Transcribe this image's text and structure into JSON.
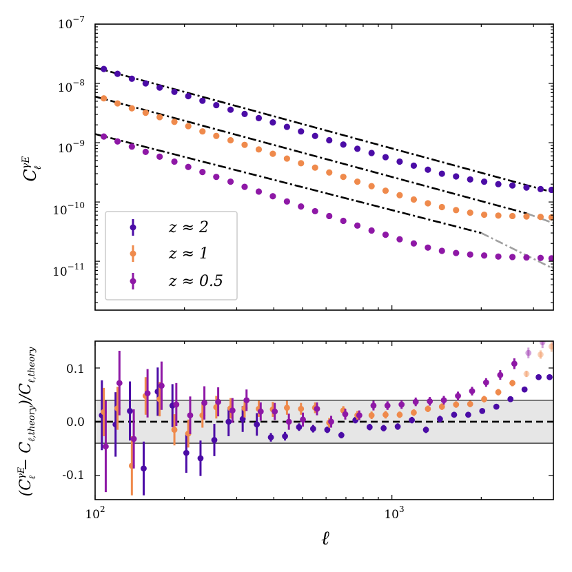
{
  "chart_data": [
    {
      "type": "scatter",
      "title": "",
      "xscale": "log",
      "yscale": "log",
      "xlim": [
        100,
        3500
      ],
      "ylim": [
        1.5e-12,
        1e-07
      ],
      "xlabel": "",
      "ylabel": {
        "base": "C",
        "sup": "γE",
        "sub": "ℓ"
      },
      "ytick_labels": [
        {
          "value": 1e-07,
          "base": "10",
          "exp": "−7"
        },
        {
          "value": 1e-08,
          "base": "10",
          "exp": "−8"
        },
        {
          "value": 1e-09,
          "base": "10",
          "exp": "−9"
        },
        {
          "value": 1e-10,
          "base": "10",
          "exp": "−10"
        },
        {
          "value": 1e-11,
          "base": "10",
          "exp": "−11"
        }
      ],
      "legend": {
        "placement": "lower-left",
        "entries": [
          {
            "label": "z ≈ 2",
            "color": "#4b0ca6"
          },
          {
            "label": "z ≈ 1",
            "color": "#ef8a4c"
          },
          {
            "label": "z ≈ 0.5",
            "color": "#8e18a6"
          }
        ]
      },
      "theory_lines": [
        {
          "name": "z ≈ 2",
          "x": [
            100,
            3500
          ],
          "y": [
            1.85e-08,
            1.45e-10
          ],
          "style": "black dash-dot"
        },
        {
          "name": "z ≈ 1",
          "x": [
            100,
            2850,
            3500
          ],
          "y": [
            6e-09,
            6.4e-11,
            4.4e-11
          ],
          "style": "black dash-dot, grey beyond 2850"
        },
        {
          "name": "z ≈ 0.5",
          "x": [
            100,
            2000,
            3500
          ],
          "y": [
            1.4e-09,
            3e-11,
            7.5e-12
          ],
          "style": "black dash-dot, grey beyond 2000"
        }
      ],
      "series": [
        {
          "name": "z ≈ 2",
          "color": "#4b0ca6",
          "x": [
            107,
            119,
            133,
            148,
            165,
            185,
            206,
            230,
            256,
            286,
            319,
            356,
            397,
            443,
            494,
            551,
            615,
            686,
            765,
            854,
            952,
            1062,
            1185,
            1322,
            1474,
            1645,
            1835,
            2046,
            2283,
            2547,
            2841,
            3169,
            3450
          ],
          "y": [
            1.75e-08,
            1.45e-08,
            1.2e-08,
            1e-08,
            8.5e-09,
            7.2e-09,
            6.1e-09,
            5.1e-09,
            4.3e-09,
            3.6e-09,
            3.05e-09,
            2.6e-09,
            2.2e-09,
            1.85e-09,
            1.55e-09,
            1.3e-09,
            1.1e-09,
            9.3e-10,
            7.9e-10,
            6.7e-10,
            5.7e-10,
            4.8e-10,
            4.1e-10,
            3.5e-10,
            3e-10,
            2.7e-10,
            2.4e-10,
            2.2e-10,
            2e-10,
            1.9e-10,
            1.75e-10,
            1.65e-10,
            1.6e-10
          ]
        },
        {
          "name": "z ≈ 1",
          "color": "#ef8a4c",
          "x": [
            107,
            119,
            133,
            148,
            165,
            185,
            206,
            230,
            256,
            286,
            319,
            356,
            397,
            443,
            494,
            551,
            615,
            686,
            765,
            854,
            952,
            1062,
            1185,
            1322,
            1474,
            1645,
            1835,
            2046,
            2283,
            2547,
            2841,
            3169,
            3450
          ],
          "y": [
            5.6e-09,
            4.6e-09,
            3.8e-09,
            3.2e-09,
            2.7e-09,
            2.25e-09,
            1.9e-09,
            1.55e-09,
            1.3e-09,
            1.1e-09,
            9.2e-10,
            7.7e-10,
            6.5e-10,
            5.4e-10,
            4.5e-10,
            3.8e-10,
            3.15e-10,
            2.65e-10,
            2.2e-10,
            1.85e-10,
            1.55e-10,
            1.3e-10,
            1.1e-10,
            9.5e-11,
            8.2e-11,
            7.3e-11,
            6.6e-11,
            6.1e-11,
            5.9e-11,
            5.8e-11,
            5.7e-11,
            5.6e-11,
            5.5e-11
          ]
        },
        {
          "name": "z ≈ 0.5",
          "color": "#8e18a6",
          "x": [
            107,
            119,
            133,
            148,
            165,
            185,
            206,
            230,
            256,
            286,
            319,
            356,
            397,
            443,
            494,
            551,
            615,
            686,
            765,
            854,
            952,
            1062,
            1185,
            1322,
            1474,
            1645,
            1835,
            2046,
            2283,
            2547,
            2841,
            3169,
            3450
          ],
          "y": [
            1.27e-09,
            1.05e-09,
            8.6e-10,
            7e-10,
            5.8e-10,
            4.8e-10,
            3.9e-10,
            3.2e-10,
            2.65e-10,
            2.2e-10,
            1.8e-10,
            1.5e-10,
            1.25e-10,
            1.02e-10,
            8.4e-11,
            7e-11,
            5.8e-11,
            4.8e-11,
            4e-11,
            3.3e-11,
            2.8e-11,
            2.35e-11,
            2e-11,
            1.7e-11,
            1.5e-11,
            1.38e-11,
            1.3e-11,
            1.25e-11,
            1.2e-11,
            1.18e-11,
            1.16e-11,
            1.14e-11,
            1.12e-11
          ]
        }
      ]
    },
    {
      "type": "scatter",
      "title": "",
      "xscale": "log",
      "yscale": "linear",
      "xlim": [
        100,
        3500
      ],
      "ylim": [
        -0.145,
        0.15
      ],
      "xlabel": "ℓ",
      "ylabel": "(C_ℓ^γE − C_ℓ,theory) / C_ℓ,theory",
      "ylabel_parts": {
        "open": "(",
        "c": "C",
        "sup": "γE",
        "sub": "ℓ",
        "minus": " − ",
        "c2": "C",
        "sub2": "ℓ,theory",
        "close": ")/",
        "c3": "C",
        "sub3": "ℓ,theory"
      },
      "ytick_labels": [
        {
          "value": 0.1,
          "label": "0.1"
        },
        {
          "value": 0.0,
          "label": "0.0"
        },
        {
          "value": -0.1,
          "label": "-0.1"
        }
      ],
      "xtick_labels": [
        {
          "value": 100,
          "base": "10",
          "exp": "2"
        },
        {
          "value": 1000,
          "base": "10",
          "exp": "3"
        }
      ],
      "reference_band": {
        "low": -0.04,
        "high": 0.04,
        "color": "#e6e6e6"
      },
      "reference_line": {
        "y": 0.0,
        "style": "black dashed"
      },
      "series": [
        {
          "name": "z ≈ 2",
          "color": "#4b0ca6",
          "x_offset_factor": 0.985,
          "x": [
            107,
            119,
            133,
            148,
            165,
            185,
            206,
            230,
            256,
            286,
            319,
            356,
            397,
            443,
            494,
            551,
            615,
            686,
            765,
            854,
            952,
            1062,
            1185,
            1322,
            1474,
            1645,
            1835,
            2046,
            2283,
            2547,
            2841,
            3169,
            3450
          ],
          "y": [
            0.012,
            -0.005,
            0.02,
            -0.087,
            0.056,
            0.03,
            -0.058,
            -0.068,
            -0.034,
            0.0,
            0.005,
            -0.005,
            -0.029,
            -0.027,
            -0.01,
            -0.013,
            -0.015,
            -0.025,
            0.003,
            -0.01,
            -0.012,
            -0.009,
            0.003,
            -0.015,
            0.005,
            0.013,
            0.013,
            0.02,
            0.028,
            0.042,
            0.06,
            0.083,
            0.083
          ],
          "yerr": [
            0.065,
            0.06,
            0.055,
            0.05,
            0.045,
            0.04,
            0.037,
            0.033,
            0.03,
            0.027,
            0.024,
            0.021,
            0.008,
            0.008,
            0.007,
            0.007,
            0.006,
            0.006,
            0.006,
            0.006,
            0.006,
            0.006,
            0.006,
            0.006,
            0.006,
            0,
            0,
            0,
            0,
            0,
            0,
            0,
            0
          ]
        },
        {
          "name": "z ≈ 1",
          "color": "#ef8a4c",
          "x_offset_factor": 1.0,
          "x": [
            107,
            119,
            133,
            148,
            165,
            185,
            206,
            230,
            256,
            286,
            319,
            356,
            397,
            443,
            494,
            551,
            615,
            686,
            765,
            854,
            952,
            1062,
            1185,
            1322,
            1474,
            1645,
            1835,
            2046,
            2283,
            2547,
            2841,
            3169,
            3450
          ],
          "y": [
            0.018,
            0.025,
            -0.082,
            0.048,
            0.042,
            -0.015,
            -0.022,
            0.012,
            0.027,
            0.025,
            0.025,
            0.024,
            0.023,
            0.026,
            0.024,
            0.026,
            -0.002,
            0.021,
            0.012,
            0.012,
            0.013,
            0.013,
            0.017,
            0.024,
            0.028,
            0.032,
            0.033,
            0.042,
            0.055,
            0.072,
            0.089,
            0.125,
            0.14
          ],
          "yerr": [
            0.045,
            0.04,
            0.055,
            0.035,
            0.032,
            0.029,
            0.026,
            0.023,
            0.021,
            0.019,
            0.017,
            0.015,
            0.014,
            0.013,
            0.011,
            0.01,
            0.009,
            0.008,
            0.008,
            0.007,
            0.007,
            0.006,
            0.006,
            0.006,
            0.006,
            0.006,
            0.006,
            0.006,
            0.006,
            0.006,
            0.006,
            0.008,
            0.01
          ]
        },
        {
          "name": "z ≈ 0.5",
          "color": "#8e18a6",
          "x_offset_factor": 1.015,
          "x": [
            107,
            119,
            133,
            148,
            165,
            185,
            206,
            230,
            256,
            286,
            319,
            356,
            397,
            443,
            494,
            551,
            615,
            686,
            765,
            854,
            952,
            1062,
            1185,
            1322,
            1474,
            1645,
            1835,
            2046,
            2283,
            2547,
            2841,
            3169,
            3450
          ],
          "y": [
            -0.046,
            0.072,
            -0.032,
            0.053,
            0.067,
            0.032,
            0.012,
            0.035,
            0.037,
            0.021,
            0.04,
            0.019,
            0.019,
            0.0,
            0.004,
            0.024,
            0.0,
            0.014,
            0.012,
            0.03,
            0.03,
            0.032,
            0.037,
            0.038,
            0.04,
            0.048,
            0.057,
            0.073,
            0.087,
            0.108,
            0.128,
            0.148,
            0.155
          ],
          "yerr": [
            0.085,
            0.06,
            0.055,
            0.045,
            0.045,
            0.04,
            0.035,
            0.031,
            0.027,
            0.023,
            0.02,
            0.017,
            0.016,
            0.015,
            0.013,
            0.012,
            0.011,
            0.01,
            0.009,
            0.009,
            0.008,
            0.008,
            0.008,
            0.008,
            0.008,
            0.008,
            0.008,
            0.008,
            0.009,
            0.01,
            0.01,
            0.011,
            0.012
          ]
        }
      ]
    }
  ]
}
